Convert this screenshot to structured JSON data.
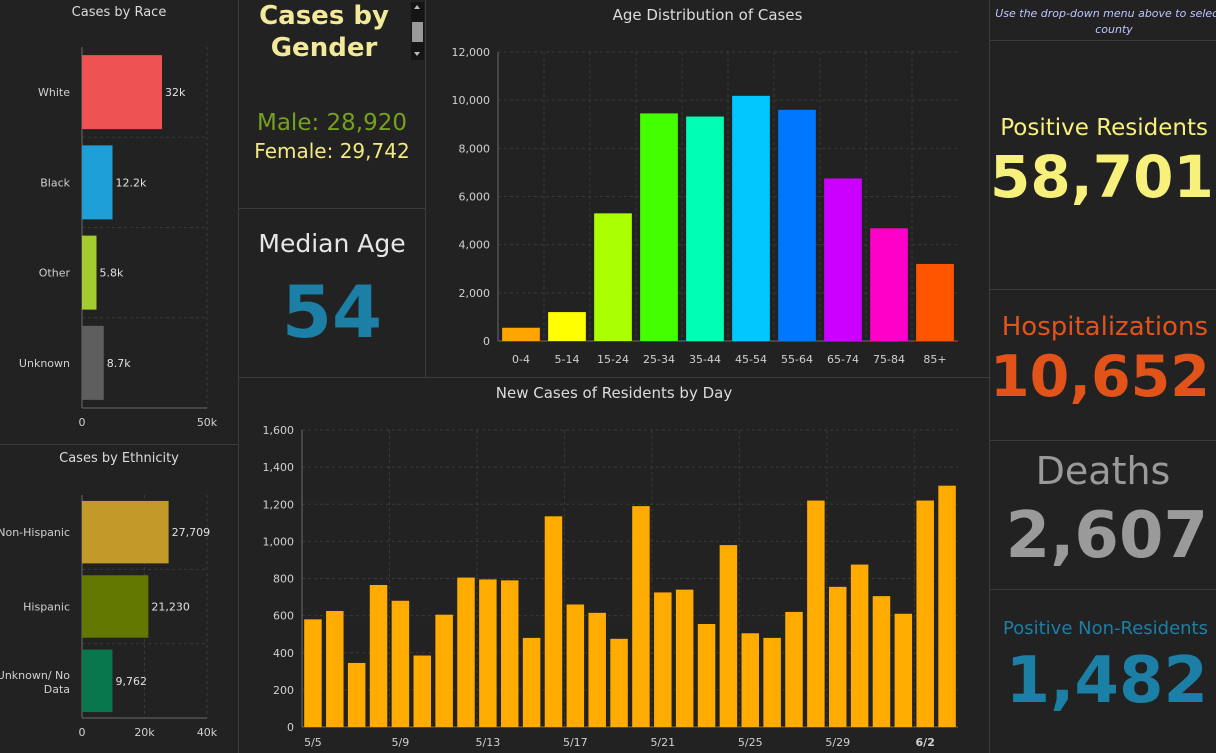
{
  "colors": {
    "male": "#76a020",
    "female": "#f2ea80",
    "median": "#1b7fa6",
    "positive": "#f7f07a",
    "hosp": "#e2531a",
    "deaths": "#9a9a9a",
    "nonres": "#1b7fa6",
    "daily_bar": "#ffab00"
  },
  "gender": {
    "title": "Cases by Gender",
    "male": "Male: 28,920",
    "female": "Female: 29,742"
  },
  "median": {
    "label": "Median Age",
    "value": "54"
  },
  "notice": "Use the drop-down menu above to select a county",
  "stats": {
    "positive_label": "Positive Residents",
    "positive_value": "58,701",
    "hosp_label": "Hospitalizations",
    "hosp_value": "10,652",
    "deaths_label": "Deaths",
    "deaths_value": "2,607",
    "nonres_label": "Positive Non-Residents",
    "nonres_value": "1,482"
  },
  "chart_data": [
    {
      "id": "race",
      "type": "bar",
      "orientation": "horizontal",
      "title": "Cases by Race",
      "categories": [
        "White",
        "Black",
        "Other",
        "Unknown"
      ],
      "values": [
        32000,
        12200,
        5800,
        8700
      ],
      "data_labels": [
        "32k",
        "12.2k",
        "5.8k",
        "8.7k"
      ],
      "colors": [
        "#ee5253",
        "#1e9fd8",
        "#a3cc2e",
        "#5e5e5e"
      ],
      "xlim": [
        0,
        50000
      ],
      "ticks": [
        0,
        50000
      ],
      "tick_labels": [
        "0",
        "50k"
      ]
    },
    {
      "id": "ethnicity",
      "type": "bar",
      "orientation": "horizontal",
      "title": "Cases by Ethnicity",
      "categories": [
        "Non-Hispanic",
        "Hispanic",
        "Unknown/ No Data"
      ],
      "values": [
        27709,
        21230,
        9762
      ],
      "data_labels": [
        "27,709",
        "21,230",
        "9,762"
      ],
      "colors": [
        "#c39a2a",
        "#637800",
        "#08774d"
      ],
      "xlim": [
        0,
        40000
      ],
      "ticks": [
        0,
        20000,
        40000
      ],
      "tick_labels": [
        "0",
        "20k",
        "40k"
      ]
    },
    {
      "id": "age",
      "type": "bar",
      "title": "Age Distribution of Cases",
      "categories": [
        "0-4",
        "5-14",
        "15-24",
        "25-34",
        "35-44",
        "45-54",
        "55-64",
        "65-74",
        "75-84",
        "85+"
      ],
      "values": [
        550,
        1200,
        5300,
        9450,
        9320,
        10180,
        9600,
        6750,
        4680,
        3200
      ],
      "colors": [
        "#ffa500",
        "#ffff00",
        "#aaff00",
        "#44ff00",
        "#00ffb4",
        "#00c8ff",
        "#0077ff",
        "#cc00ff",
        "#ff00c8",
        "#ff5500"
      ],
      "ylim": [
        0,
        12000
      ],
      "ticks": [
        0,
        2000,
        4000,
        6000,
        8000,
        10000,
        12000
      ],
      "tick_labels": [
        "0",
        "2,000",
        "4,000",
        "6,000",
        "8,000",
        "10,000",
        "12,000"
      ]
    },
    {
      "id": "daily",
      "type": "bar",
      "title": "New Cases of Residents by Day",
      "x_start": "5/5",
      "x_tick_labels": [
        "5/5",
        "5/9",
        "5/13",
        "5/17",
        "5/21",
        "5/25",
        "5/29",
        "6/2"
      ],
      "values": [
        580,
        625,
        345,
        765,
        680,
        385,
        605,
        805,
        795,
        790,
        480,
        1135,
        660,
        615,
        475,
        1190,
        725,
        740,
        555,
        980,
        505,
        480,
        620,
        1220,
        755,
        875,
        705,
        610,
        1220,
        1300
      ],
      "ylim": [
        0,
        1600
      ],
      "ticks": [
        0,
        200,
        400,
        600,
        800,
        1000,
        1200,
        1400,
        1600
      ],
      "tick_labels": [
        "0",
        "200",
        "400",
        "600",
        "800",
        "1,000",
        "1,200",
        "1,400",
        "1,600"
      ]
    }
  ]
}
